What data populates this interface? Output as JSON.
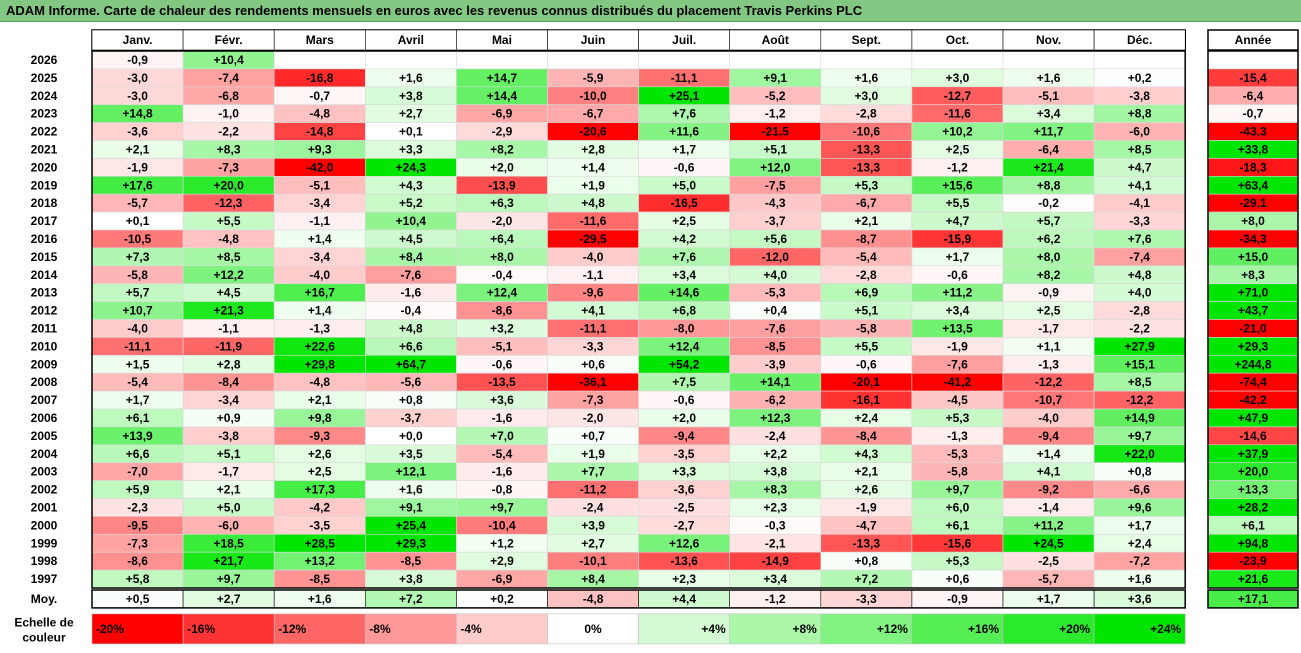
{
  "title": "ADAM Informe. Carte de chaleur des rendements mensuels en euros avec les revenus connus distribués du placement Travis Perkins PLC",
  "chart_data": {
    "type": "heatmap",
    "months": [
      "Janv.",
      "Févr.",
      "Mars",
      "Avril",
      "Mai",
      "Juin",
      "Juil.",
      "Août",
      "Sept.",
      "Oct.",
      "Nov.",
      "Déc."
    ],
    "year_header": "Année",
    "rows": [
      {
        "year": "2026",
        "values": [
          "-0,9",
          "+10,4",
          null,
          null,
          null,
          null,
          null,
          null,
          null,
          null,
          null,
          null
        ],
        "total": ""
      },
      {
        "year": "2025",
        "values": [
          "-3,0",
          "-7,4",
          "-16,8",
          "+1,6",
          "+14,7",
          "-5,9",
          "-11,1",
          "+9,1",
          "+1,6",
          "+3,0",
          "+1,6",
          "+0,2"
        ],
        "total": "-15,4"
      },
      {
        "year": "2024",
        "values": [
          "-3,0",
          "-6,8",
          "-0,7",
          "+3,8",
          "+14,4",
          "-10,0",
          "+25,1",
          "-5,2",
          "+3,0",
          "-12,7",
          "-5,1",
          "-3,8"
        ],
        "total": "-6,4"
      },
      {
        "year": "2023",
        "values": [
          "+14,8",
          "-1,0",
          "-4,8",
          "+2,7",
          "-6,9",
          "-6,7",
          "+7,6",
          "-1,2",
          "-2,8",
          "-11,6",
          "+3,4",
          "+8,8"
        ],
        "total": "-0,7"
      },
      {
        "year": "2022",
        "values": [
          "-3,6",
          "-2,2",
          "-14,8",
          "+0,1",
          "-2,9",
          "-20,6",
          "+11,6",
          "-21,5",
          "-10,6",
          "+10,2",
          "+11,7",
          "-6,0"
        ],
        "total": "-43,3"
      },
      {
        "year": "2021",
        "values": [
          "+2,1",
          "+8,3",
          "+9,3",
          "+3,3",
          "+8,2",
          "+2,8",
          "+1,7",
          "+5,1",
          "-13,3",
          "+2,5",
          "-6,4",
          "+8,5"
        ],
        "total": "+33,8"
      },
      {
        "year": "2020",
        "values": [
          "-1,9",
          "-7,3",
          "-42,0",
          "+24,3",
          "+2,0",
          "+1,4",
          "-0,6",
          "+12,0",
          "-13,3",
          "-1,2",
          "+21,4",
          "+4,7"
        ],
        "total": "-18,3"
      },
      {
        "year": "2019",
        "values": [
          "+17,6",
          "+20,0",
          "-5,1",
          "+4,3",
          "-13,9",
          "+1,9",
          "+5,0",
          "-7,5",
          "+5,3",
          "+15,6",
          "+8,8",
          "+4,1"
        ],
        "total": "+63,4"
      },
      {
        "year": "2018",
        "values": [
          "-5,7",
          "-12,3",
          "-3,4",
          "+5,2",
          "+6,3",
          "+4,8",
          "-16,5",
          "-4,3",
          "-6,7",
          "+5,5",
          "-0,2",
          "-4,1"
        ],
        "total": "-29,1"
      },
      {
        "year": "2017",
        "values": [
          "+0,1",
          "+5,5",
          "-1,1",
          "+10,4",
          "-2,0",
          "-11,6",
          "+2,5",
          "-3,7",
          "+2,1",
          "+4,7",
          "+5,7",
          "-3,3"
        ],
        "total": "+8,0"
      },
      {
        "year": "2016",
        "values": [
          "-10,5",
          "-4,8",
          "+1,4",
          "+4,5",
          "+6,4",
          "-29,5",
          "+4,2",
          "+5,6",
          "-8,7",
          "-15,9",
          "+6,2",
          "+7,6"
        ],
        "total": "-34,3"
      },
      {
        "year": "2015",
        "values": [
          "+7,3",
          "+8,5",
          "-3,4",
          "+8,4",
          "+8,0",
          "-4,0",
          "+7,6",
          "-12,0",
          "-5,4",
          "+1,7",
          "+8,0",
          "-7,4"
        ],
        "total": "+15,0"
      },
      {
        "year": "2014",
        "values": [
          "-5,8",
          "+12,2",
          "-4,0",
          "-7,6",
          "-0,4",
          "-1,1",
          "+3,4",
          "+4,0",
          "-2,8",
          "-0,6",
          "+8,2",
          "+4,8"
        ],
        "total": "+8,3"
      },
      {
        "year": "2013",
        "values": [
          "+5,7",
          "+4,5",
          "+16,7",
          "-1,6",
          "+12,4",
          "-9,6",
          "+14,6",
          "-5,3",
          "+6,9",
          "+11,2",
          "-0,9",
          "+4,0"
        ],
        "total": "+71,0"
      },
      {
        "year": "2012",
        "values": [
          "+10,7",
          "+21,3",
          "+1,4",
          "-0,4",
          "-8,6",
          "+4,1",
          "+6,8",
          "+0,4",
          "+5,1",
          "+3,4",
          "+2,5",
          "-2,8"
        ],
        "total": "+43,7"
      },
      {
        "year": "2011",
        "values": [
          "-4,0",
          "-1,1",
          "-1,3",
          "+4,8",
          "+3,2",
          "-11,1",
          "-8,0",
          "-7,6",
          "-5,8",
          "+13,5",
          "-1,7",
          "-2,2"
        ],
        "total": "-21,0"
      },
      {
        "year": "2010",
        "values": [
          "-11,1",
          "-11,9",
          "+22,6",
          "+6,6",
          "-5,1",
          "-3,3",
          "+12,4",
          "-8,5",
          "+5,5",
          "-1,9",
          "+1,1",
          "+27,9"
        ],
        "total": "+29,3"
      },
      {
        "year": "2009",
        "values": [
          "+1,5",
          "+2,8",
          "+29,8",
          "+64,7",
          "-0,6",
          "+0,6",
          "+54,2",
          "-3,9",
          "-0,6",
          "-7,6",
          "-1,3",
          "+15,1"
        ],
        "total": "+244,8"
      },
      {
        "year": "2008",
        "values": [
          "-5,4",
          "-8,4",
          "-4,8",
          "-5,6",
          "-13,5",
          "-36,1",
          "+7,5",
          "+14,1",
          "-20,1",
          "-41,2",
          "-12,2",
          "+8,5"
        ],
        "total": "-74,4"
      },
      {
        "year": "2007",
        "values": [
          "+1,7",
          "-3,4",
          "+2,1",
          "+0,8",
          "+3,6",
          "-7,3",
          "-0,6",
          "-6,2",
          "-16,1",
          "-4,5",
          "-10,7",
          "-12,2"
        ],
        "total": "-42,2"
      },
      {
        "year": "2006",
        "values": [
          "+6,1",
          "+0,9",
          "+9,8",
          "-3,7",
          "-1,6",
          "-2,0",
          "+2,0",
          "+12,3",
          "+2,4",
          "+5,3",
          "-4,0",
          "+14,9"
        ],
        "total": "+47,9"
      },
      {
        "year": "2005",
        "values": [
          "+13,9",
          "-3,8",
          "-9,3",
          "+0,0",
          "+7,0",
          "+0,7",
          "-9,4",
          "-2,4",
          "-8,4",
          "-1,3",
          "-9,4",
          "+9,7"
        ],
        "total": "-14,6"
      },
      {
        "year": "2004",
        "values": [
          "+6,6",
          "+5,1",
          "+2,6",
          "+3,5",
          "-5,4",
          "+1,9",
          "-3,5",
          "+2,2",
          "+4,3",
          "-5,3",
          "+1,4",
          "+22,0"
        ],
        "total": "+37,9"
      },
      {
        "year": "2003",
        "values": [
          "-7,0",
          "-1,7",
          "+2,5",
          "+12,1",
          "-1,6",
          "+7,7",
          "+3,3",
          "+3,8",
          "+2,1",
          "-5,8",
          "+4,1",
          "+0,8"
        ],
        "total": "+20,0"
      },
      {
        "year": "2002",
        "values": [
          "+5,9",
          "+2,1",
          "+17,3",
          "+1,6",
          "-0,8",
          "-11,2",
          "-3,6",
          "+8,3",
          "+2,6",
          "+9,7",
          "-9,2",
          "-6,6"
        ],
        "total": "+13,3"
      },
      {
        "year": "2001",
        "values": [
          "-2,3",
          "+5,0",
          "-4,2",
          "+9,1",
          "+9,7",
          "-2,4",
          "-2,5",
          "+2,3",
          "-1,9",
          "+6,0",
          "-1,4",
          "+9,6"
        ],
        "total": "+28,2"
      },
      {
        "year": "2000",
        "values": [
          "-9,5",
          "-6,0",
          "-3,5",
          "+25,4",
          "-10,4",
          "+3,9",
          "-2,7",
          "-0,3",
          "-4,7",
          "+6,1",
          "+11,2",
          "+1,7"
        ],
        "total": "+6,1"
      },
      {
        "year": "1999",
        "values": [
          "-7,3",
          "+18,5",
          "+28,5",
          "+29,3",
          "+1,2",
          "+2,7",
          "+12,6",
          "-2,1",
          "-13,3",
          "-15,6",
          "+24,5",
          "+2,4"
        ],
        "total": "+94,8"
      },
      {
        "year": "1998",
        "values": [
          "-8,6",
          "+21,7",
          "+13,2",
          "-8,5",
          "+2,9",
          "-10,1",
          "-13,6",
          "-14,9",
          "+0,8",
          "+5,3",
          "-2,5",
          "-7,2"
        ],
        "total": "-23,9"
      },
      {
        "year": "1997",
        "values": [
          "+5,8",
          "+9,7",
          "-8,5",
          "+3,8",
          "-6,9",
          "+8,4",
          "+2,3",
          "+3,4",
          "+7,2",
          "+0,6",
          "-5,7",
          "+1,6"
        ],
        "total": "+21,6"
      }
    ],
    "average": {
      "label": "Moy.",
      "values": [
        "+0,5",
        "+2,7",
        "+1,6",
        "+7,2",
        "+0,2",
        "-4,8",
        "+4,4",
        "-1,2",
        "-3,3",
        "-0,9",
        "+1,7",
        "+3,6"
      ],
      "total": "+17,1"
    },
    "scale": {
      "label_line1": "Echelle de",
      "label_line2": "couleur",
      "stops": [
        {
          "label": "-20%",
          "value": -20
        },
        {
          "label": "-16%",
          "value": -16
        },
        {
          "label": "-12%",
          "value": -12
        },
        {
          "label": "-8%",
          "value": -8
        },
        {
          "label": "-4%",
          "value": -4
        },
        {
          "label": "0%",
          "value": 0
        },
        {
          "label": "+4%",
          "value": 4
        },
        {
          "label": "+8%",
          "value": 8
        },
        {
          "label": "+12%",
          "value": 12
        },
        {
          "label": "+16%",
          "value": 16
        },
        {
          "label": "+20%",
          "value": 20
        },
        {
          "label": "+24%",
          "value": 24
        }
      ]
    },
    "colors": {
      "negative_max": "#ff0000",
      "neutral": "#ffffff",
      "positive_max": "#00e600",
      "header_bg": "#82c882"
    }
  }
}
